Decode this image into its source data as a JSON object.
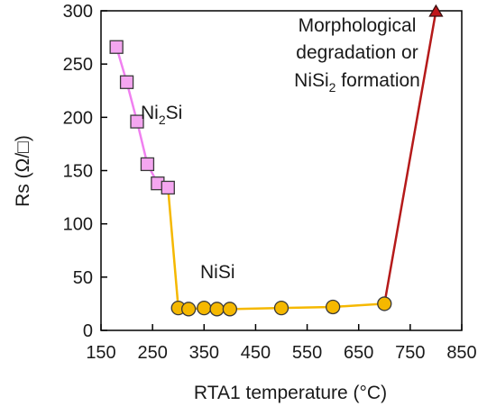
{
  "chart_data": {
    "type": "scatter",
    "xlabel": "RTA1 temperature (°C)",
    "ylabel": "Rs (Ω/□)",
    "xlim": [
      150,
      850
    ],
    "ylim": [
      0,
      300
    ],
    "xticks": [
      150,
      250,
      350,
      450,
      550,
      650,
      750,
      850
    ],
    "yticks": [
      0,
      50,
      100,
      150,
      200,
      250,
      300
    ],
    "grid": false,
    "series": [
      {
        "name": "Ni2Si",
        "marker": "square",
        "fill": "#f4a6f0",
        "line": "#f080f0",
        "x": [
          180,
          200,
          220,
          240,
          260,
          280
        ],
        "y": [
          266,
          233,
          196,
          156,
          138,
          134
        ]
      },
      {
        "name": "NiSi",
        "marker": "circle",
        "fill": "#f5b800",
        "line": "#f5b800",
        "x": [
          300,
          320,
          350,
          375,
          400,
          500,
          600,
          700
        ],
        "y": [
          21,
          20,
          21,
          20,
          20,
          21,
          22,
          25
        ]
      },
      {
        "name": "",
        "marker": "triangle",
        "fill": "#c0161a",
        "line": "#c0161a",
        "x": [
          800
        ],
        "y": [
          300
        ]
      }
    ],
    "connectors": [
      {
        "from": [
          280,
          134
        ],
        "to": [
          300,
          21
        ],
        "color": "#f5b800"
      },
      {
        "from": [
          700,
          25
        ],
        "to": [
          800,
          300
        ],
        "color": "#b51a1a"
      }
    ],
    "annotations": {
      "ni2si": {
        "base": "Ni",
        "sub": "2",
        "rest": "Si"
      },
      "nisi": "NiSi",
      "morph_line1": "Morphological",
      "morph_line2": "degradation or",
      "morph_line3_base": "NiSi",
      "morph_line3_sub": "2",
      "morph_line3_rest": " formation"
    }
  }
}
